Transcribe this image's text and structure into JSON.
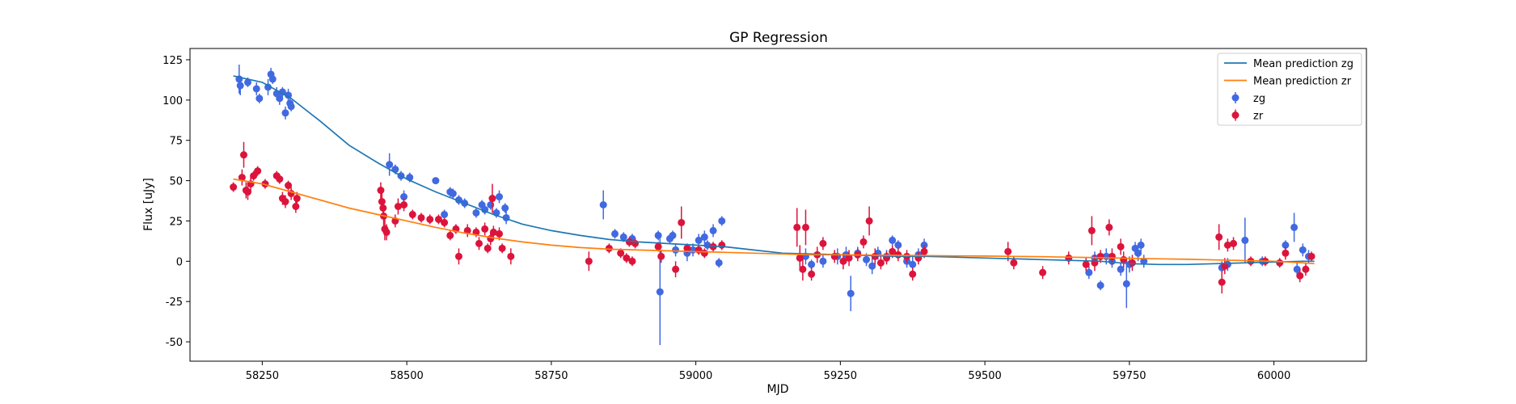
{
  "chart_data": {
    "type": "scatter",
    "title": "GP Regression",
    "xlabel": "MJD",
    "ylabel": "Flux [uJy]",
    "xlim": [
      58125,
      60160
    ],
    "ylim": [
      -62,
      132
    ],
    "xticks": [
      58250,
      58500,
      58750,
      59000,
      59250,
      59500,
      59750,
      60000
    ],
    "yticks": [
      -50,
      -25,
      0,
      25,
      50,
      75,
      100,
      125
    ],
    "grid": false,
    "legend_position": "top-right",
    "colors": {
      "zg_line": "#1f77b4",
      "zr_line": "#ff7f0e",
      "zg_points": "#4169e1",
      "zr_points": "#dc143c"
    },
    "legend": [
      {
        "label": "Mean prediction zg",
        "kind": "line",
        "series": "zg_line"
      },
      {
        "label": "Mean prediction zr",
        "kind": "line",
        "series": "zr_line"
      },
      {
        "label": "zg",
        "kind": "errorbar",
        "series": "zg_points"
      },
      {
        "label": "zr",
        "kind": "errorbar",
        "series": "zr_points"
      }
    ],
    "series": [
      {
        "name": "Mean prediction zg",
        "kind": "line",
        "x": [
          58200,
          58250,
          58300,
          58350,
          58400,
          58450,
          58500,
          58550,
          58600,
          58650,
          58700,
          58750,
          58800,
          58850,
          58900,
          58950,
          59000,
          59050,
          59100,
          59150,
          59200,
          59250,
          59300,
          59350,
          59400,
          59450,
          59500,
          59550,
          59600,
          59650,
          59700,
          59750,
          59800,
          59850,
          59900,
          59950,
          60000,
          60050,
          60070
        ],
        "y": [
          115,
          111,
          101,
          87,
          72,
          61,
          51,
          43,
          36,
          29,
          23,
          19,
          16,
          13.5,
          12,
          11,
          10,
          9,
          7,
          5,
          4.5,
          4,
          3.5,
          3,
          3,
          2.5,
          2,
          1.5,
          1,
          0.5,
          0,
          -1.5,
          -2,
          -2,
          -1.5,
          -1,
          -0.5,
          0,
          0
        ]
      },
      {
        "name": "Mean prediction zr",
        "kind": "line",
        "x": [
          58200,
          58250,
          58300,
          58350,
          58400,
          58450,
          58500,
          58550,
          58600,
          58650,
          58700,
          58750,
          58800,
          58850,
          58900,
          58950,
          59000,
          59050,
          59100,
          59150,
          59200,
          59250,
          59300,
          59350,
          59400,
          59450,
          59500,
          59550,
          59600,
          59650,
          59700,
          59750,
          59800,
          59850,
          59900,
          59950,
          60000,
          60050,
          60070
        ],
        "y": [
          51,
          48,
          43,
          38,
          33,
          29,
          25,
          21,
          17.5,
          14.5,
          12,
          10,
          8.5,
          7.5,
          7,
          6.5,
          6,
          5.5,
          5,
          4.5,
          4,
          4,
          3.8,
          3.6,
          3.5,
          3.3,
          3.2,
          3,
          2.8,
          2.5,
          2.2,
          1.8,
          1.5,
          1.2,
          0.8,
          0.4,
          0,
          -1,
          -1.5
        ]
      },
      {
        "name": "zg",
        "kind": "errorbar",
        "points": [
          [
            58210,
            113,
            9
          ],
          [
            58212,
            109,
            6
          ],
          [
            58225,
            111,
            3
          ],
          [
            58240,
            107,
            4
          ],
          [
            58245,
            101,
            3
          ],
          [
            58260,
            108,
            5
          ],
          [
            58265,
            116,
            4
          ],
          [
            58268,
            113,
            3
          ],
          [
            58275,
            104,
            4
          ],
          [
            58280,
            101,
            4
          ],
          [
            58285,
            105,
            3
          ],
          [
            58290,
            92,
            4
          ],
          [
            58295,
            103,
            4
          ],
          [
            58298,
            98,
            3
          ],
          [
            58300,
            96,
            3
          ],
          [
            58470,
            60,
            7
          ],
          [
            58480,
            57,
            3
          ],
          [
            58490,
            53,
            3
          ],
          [
            58495,
            40,
            4
          ],
          [
            58505,
            52,
            3
          ],
          [
            58550,
            50,
            2
          ],
          [
            58565,
            29,
            3
          ],
          [
            58575,
            43,
            3
          ],
          [
            58580,
            42,
            3
          ],
          [
            58590,
            38,
            3
          ],
          [
            58600,
            36,
            3
          ],
          [
            58620,
            30,
            3
          ],
          [
            58630,
            35,
            3
          ],
          [
            58635,
            32,
            3
          ],
          [
            58645,
            35,
            3
          ],
          [
            58655,
            30,
            3
          ],
          [
            58660,
            40,
            4
          ],
          [
            58670,
            33,
            3
          ],
          [
            58672,
            27,
            4
          ],
          [
            58840,
            35,
            9
          ],
          [
            58860,
            17,
            3
          ],
          [
            58875,
            15,
            3
          ],
          [
            58890,
            14,
            3
          ],
          [
            58935,
            16,
            3
          ],
          [
            58938,
            -19,
            33
          ],
          [
            58955,
            14,
            3
          ],
          [
            58960,
            16,
            3
          ],
          [
            58965,
            7,
            4
          ],
          [
            58985,
            5,
            5
          ],
          [
            58995,
            7,
            4
          ],
          [
            59005,
            13,
            4
          ],
          [
            59015,
            15,
            4
          ],
          [
            59020,
            10,
            3
          ],
          [
            59030,
            19,
            4
          ],
          [
            59040,
            -1,
            3
          ],
          [
            59045,
            25,
            3
          ],
          [
            59180,
            2,
            5
          ],
          [
            59190,
            3,
            5
          ],
          [
            59200,
            -2,
            3
          ],
          [
            59220,
            0,
            4
          ],
          [
            59245,
            3,
            5
          ],
          [
            59260,
            4,
            5
          ],
          [
            59268,
            -20,
            11
          ],
          [
            59280,
            5,
            4
          ],
          [
            59295,
            1,
            4
          ],
          [
            59305,
            -3,
            5
          ],
          [
            59315,
            5,
            4
          ],
          [
            59330,
            3,
            4
          ],
          [
            59340,
            13,
            3
          ],
          [
            59350,
            10,
            3
          ],
          [
            59365,
            0,
            4
          ],
          [
            59375,
            -2,
            5
          ],
          [
            59385,
            4,
            4
          ],
          [
            59395,
            10,
            4
          ],
          [
            59680,
            -7,
            4
          ],
          [
            59690,
            2,
            4
          ],
          [
            59700,
            -15,
            3
          ],
          [
            59710,
            3,
            5
          ],
          [
            59720,
            0,
            4
          ],
          [
            59735,
            -5,
            4
          ],
          [
            59745,
            -14,
            15
          ],
          [
            59750,
            -2,
            5
          ],
          [
            59760,
            8,
            4
          ],
          [
            59765,
            5,
            5
          ],
          [
            59770,
            10,
            4
          ],
          [
            59775,
            0,
            4
          ],
          [
            59910,
            -4,
            4
          ],
          [
            59920,
            -2,
            4
          ],
          [
            59950,
            13,
            14
          ],
          [
            59980,
            0,
            3
          ],
          [
            60020,
            10,
            3
          ],
          [
            60035,
            21,
            9
          ],
          [
            60040,
            -5,
            4
          ],
          [
            60050,
            7,
            4
          ],
          [
            60060,
            3,
            4
          ]
        ]
      },
      {
        "name": "zr",
        "kind": "errorbar",
        "points": [
          [
            58200,
            46,
            3
          ],
          [
            58215,
            52,
            5
          ],
          [
            58218,
            66,
            8
          ],
          [
            58222,
            44,
            5
          ],
          [
            58225,
            43,
            5
          ],
          [
            58230,
            48,
            5
          ],
          [
            58235,
            53,
            3
          ],
          [
            58242,
            56,
            3
          ],
          [
            58255,
            48,
            3
          ],
          [
            58275,
            53,
            3
          ],
          [
            58280,
            51,
            3
          ],
          [
            58285,
            39,
            4
          ],
          [
            58290,
            37,
            4
          ],
          [
            58295,
            47,
            3
          ],
          [
            58300,
            42,
            4
          ],
          [
            58308,
            34,
            4
          ],
          [
            58310,
            39,
            4
          ],
          [
            58455,
            44,
            5
          ],
          [
            58457,
            37,
            5
          ],
          [
            58459,
            33,
            5
          ],
          [
            58460,
            28,
            6
          ],
          [
            58462,
            20,
            7
          ],
          [
            58465,
            18,
            5
          ],
          [
            58480,
            25,
            4
          ],
          [
            58485,
            34,
            5
          ],
          [
            58495,
            35,
            4
          ],
          [
            58510,
            29,
            3
          ],
          [
            58525,
            27,
            3
          ],
          [
            58540,
            26,
            3
          ],
          [
            58555,
            26,
            3
          ],
          [
            58565,
            24,
            3
          ],
          [
            58575,
            16,
            3
          ],
          [
            58585,
            20,
            3
          ],
          [
            58590,
            3,
            5
          ],
          [
            58605,
            19,
            4
          ],
          [
            58620,
            18,
            3
          ],
          [
            58625,
            11,
            4
          ],
          [
            58635,
            20,
            4
          ],
          [
            58640,
            8,
            3
          ],
          [
            58645,
            14,
            4
          ],
          [
            58648,
            39,
            9
          ],
          [
            58650,
            18,
            4
          ],
          [
            58660,
            17,
            4
          ],
          [
            58665,
            8,
            3
          ],
          [
            58680,
            3,
            5
          ],
          [
            58815,
            0,
            6
          ],
          [
            58850,
            8,
            3
          ],
          [
            58870,
            5,
            3
          ],
          [
            58880,
            2,
            3
          ],
          [
            58885,
            12,
            3
          ],
          [
            58890,
            0,
            3
          ],
          [
            58895,
            11,
            3
          ],
          [
            58935,
            9,
            3
          ],
          [
            58940,
            3,
            4
          ],
          [
            58965,
            -5,
            5
          ],
          [
            58975,
            24,
            10
          ],
          [
            58985,
            8,
            3
          ],
          [
            59005,
            7,
            3
          ],
          [
            59015,
            5,
            3
          ],
          [
            59030,
            9,
            3
          ],
          [
            59045,
            10,
            3
          ],
          [
            59175,
            21,
            12
          ],
          [
            59180,
            2,
            8
          ],
          [
            59185,
            -5,
            7
          ],
          [
            59190,
            21,
            11
          ],
          [
            59200,
            -8,
            4
          ],
          [
            59210,
            4,
            5
          ],
          [
            59220,
            11,
            4
          ],
          [
            59240,
            3,
            4
          ],
          [
            59255,
            0,
            5
          ],
          [
            59265,
            2,
            5
          ],
          [
            59280,
            4,
            4
          ],
          [
            59290,
            12,
            4
          ],
          [
            59300,
            25,
            9
          ],
          [
            59310,
            3,
            5
          ],
          [
            59320,
            -1,
            4
          ],
          [
            59330,
            2,
            4
          ],
          [
            59340,
            6,
            4
          ],
          [
            59350,
            4,
            4
          ],
          [
            59365,
            3,
            4
          ],
          [
            59375,
            -8,
            4
          ],
          [
            59385,
            2,
            4
          ],
          [
            59395,
            6,
            4
          ],
          [
            59540,
            6,
            6
          ],
          [
            59550,
            -1,
            4
          ],
          [
            59600,
            -7,
            4
          ],
          [
            59645,
            2,
            4
          ],
          [
            59675,
            -2,
            4
          ],
          [
            59685,
            19,
            9
          ],
          [
            59690,
            -1,
            5
          ],
          [
            59700,
            3,
            4
          ],
          [
            59715,
            21,
            5
          ],
          [
            59720,
            3,
            5
          ],
          [
            59735,
            9,
            5
          ],
          [
            59740,
            1,
            5
          ],
          [
            59755,
            -1,
            5
          ],
          [
            59905,
            15,
            8
          ],
          [
            59910,
            -13,
            7
          ],
          [
            59915,
            -3,
            5
          ],
          [
            59920,
            10,
            4
          ],
          [
            59930,
            11,
            4
          ],
          [
            59960,
            0,
            3
          ],
          [
            59985,
            0,
            3
          ],
          [
            60010,
            -1,
            3
          ],
          [
            60020,
            5,
            4
          ],
          [
            60045,
            -9,
            4
          ],
          [
            60055,
            -5,
            4
          ],
          [
            60065,
            3,
            3
          ]
        ]
      }
    ]
  }
}
